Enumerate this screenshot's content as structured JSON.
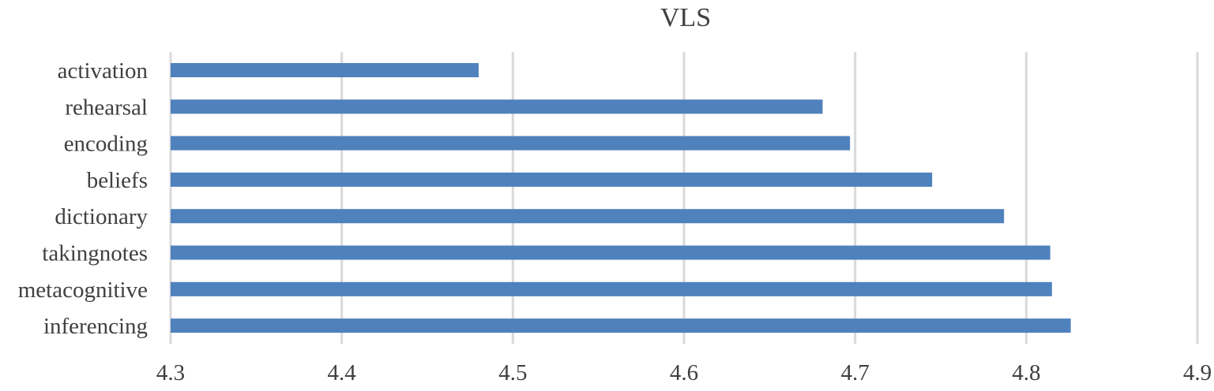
{
  "chart_data": {
    "type": "bar",
    "orientation": "horizontal",
    "title": "VLS",
    "xlabel": "",
    "ylabel": "",
    "categories": [
      "activation",
      "rehearsal",
      "encoding",
      "beliefs",
      "dictionary",
      "takingnotes",
      "metacognitive",
      "inferencing"
    ],
    "values": [
      4.48,
      4.681,
      4.697,
      4.745,
      4.787,
      4.814,
      4.815,
      4.826
    ],
    "xlim": [
      4.3,
      4.9
    ],
    "x_ticks": [
      "4.3",
      "4.4",
      "4.5",
      "4.6",
      "4.7",
      "4.8",
      "4.9"
    ],
    "grid": "vertical",
    "legend": "none"
  },
  "colors": {
    "bar": "#4f81bd",
    "grid": "#d9d9d9",
    "text": "#404040"
  }
}
